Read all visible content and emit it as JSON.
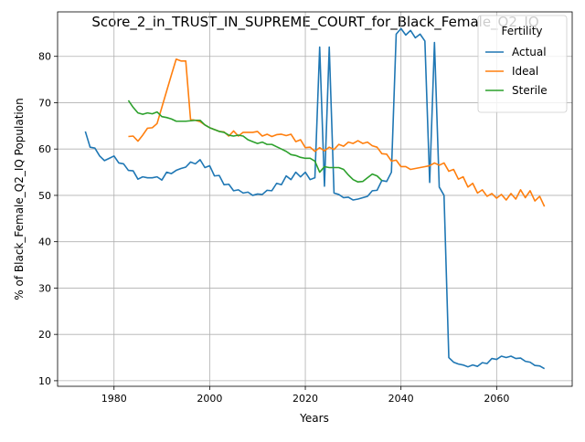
{
  "chart_data": {
    "type": "line",
    "title": "Score_2_in_TRUST_IN_SUPREME_COURT_for_Black_Female_Q2_IQ",
    "xlabel": "Years",
    "ylabel": "% of Black_Female_Q2_IQ Population",
    "xlim": [
      1968.2,
      2075.8
    ],
    "ylim": [
      8.8,
      89.6
    ],
    "xticks": [
      1980,
      2000,
      2020,
      2040,
      2060
    ],
    "yticks": [
      10,
      20,
      30,
      40,
      50,
      60,
      70,
      80
    ],
    "grid": true,
    "legend": {
      "title": "Fertility",
      "placement": "top-right"
    },
    "series": [
      {
        "name": "Actual",
        "color": "#1f77b4",
        "points": [
          [
            1974,
            63.8
          ],
          [
            1975,
            60.4
          ],
          [
            1976,
            60.2
          ],
          [
            1977,
            58.5
          ],
          [
            1978,
            57.5
          ],
          [
            1979,
            58.0
          ],
          [
            1980,
            58.5
          ],
          [
            1981,
            57.0
          ],
          [
            1982,
            56.8
          ],
          [
            1983,
            55.4
          ],
          [
            1984,
            55.3
          ],
          [
            1985,
            53.5
          ],
          [
            1986,
            54.0
          ],
          [
            1987,
            53.8
          ],
          [
            1988,
            53.8
          ],
          [
            1989,
            54.0
          ],
          [
            1990,
            53.3
          ],
          [
            1991,
            55.0
          ],
          [
            1992,
            54.7
          ],
          [
            1993,
            55.4
          ],
          [
            1994,
            55.8
          ],
          [
            1995,
            56.1
          ],
          [
            1996,
            57.2
          ],
          [
            1997,
            56.8
          ],
          [
            1998,
            57.7
          ],
          [
            1999,
            56.0
          ],
          [
            2000,
            56.4
          ],
          [
            2001,
            54.2
          ],
          [
            2002,
            54.3
          ],
          [
            2003,
            52.3
          ],
          [
            2004,
            52.4
          ],
          [
            2005,
            51.0
          ],
          [
            2006,
            51.2
          ],
          [
            2007,
            50.5
          ],
          [
            2008,
            50.7
          ],
          [
            2009,
            50.0
          ],
          [
            2010,
            50.3
          ],
          [
            2011,
            50.2
          ],
          [
            2012,
            51.1
          ],
          [
            2013,
            51.0
          ],
          [
            2014,
            52.6
          ],
          [
            2015,
            52.3
          ],
          [
            2016,
            54.2
          ],
          [
            2017,
            53.4
          ],
          [
            2018,
            55.0
          ],
          [
            2019,
            54.0
          ],
          [
            2020,
            55.0
          ],
          [
            2021,
            53.4
          ],
          [
            2022,
            53.8
          ],
          [
            2023,
            82.0
          ],
          [
            2024,
            52.0
          ],
          [
            2025,
            82.0
          ],
          [
            2026,
            50.5
          ],
          [
            2027,
            50.2
          ],
          [
            2028,
            49.5
          ],
          [
            2029,
            49.6
          ],
          [
            2030,
            49.0
          ],
          [
            2031,
            49.2
          ],
          [
            2032,
            49.5
          ],
          [
            2033,
            49.8
          ],
          [
            2034,
            51.0
          ],
          [
            2035,
            51.1
          ],
          [
            2036,
            53.2
          ],
          [
            2037,
            53.0
          ],
          [
            2038,
            55.0
          ],
          [
            2039,
            84.8
          ],
          [
            2040,
            86.0
          ],
          [
            2041,
            84.6
          ],
          [
            2042,
            85.6
          ],
          [
            2043,
            84.0
          ],
          [
            2044,
            84.8
          ],
          [
            2045,
            83.3
          ],
          [
            2046,
            52.8
          ],
          [
            2047,
            83.0
          ],
          [
            2048,
            51.8
          ],
          [
            2049,
            50.0
          ],
          [
            2050,
            15.0
          ],
          [
            2051,
            14.0
          ],
          [
            2052,
            13.6
          ],
          [
            2053,
            13.4
          ],
          [
            2054,
            13.0
          ],
          [
            2055,
            13.4
          ],
          [
            2056,
            13.1
          ],
          [
            2057,
            13.9
          ],
          [
            2058,
            13.7
          ],
          [
            2059,
            14.8
          ],
          [
            2060,
            14.6
          ],
          [
            2061,
            15.3
          ],
          [
            2062,
            15.0
          ],
          [
            2063,
            15.3
          ],
          [
            2064,
            14.8
          ],
          [
            2065,
            14.9
          ],
          [
            2066,
            14.2
          ],
          [
            2067,
            14.0
          ],
          [
            2068,
            13.3
          ],
          [
            2069,
            13.2
          ],
          [
            2070,
            12.6
          ]
        ]
      },
      {
        "name": "Ideal",
        "color": "#ff7f0e",
        "points": [
          [
            1983,
            62.7
          ],
          [
            1984,
            62.8
          ],
          [
            1985,
            61.7
          ],
          [
            1986,
            63.0
          ],
          [
            1987,
            64.5
          ],
          [
            1988,
            64.6
          ],
          [
            1989,
            65.5
          ],
          [
            1990,
            69.0
          ],
          [
            1991,
            72.5
          ],
          [
            1992,
            76.0
          ],
          [
            1993,
            79.4
          ],
          [
            1994,
            79.0
          ],
          [
            1995,
            79.0
          ],
          [
            1996,
            66.4
          ],
          [
            1997,
            66.2
          ],
          [
            1998,
            65.9
          ],
          [
            1999,
            65.2
          ],
          [
            2000,
            64.6
          ],
          [
            2001,
            64.2
          ],
          [
            2002,
            63.8
          ],
          [
            2003,
            63.7
          ],
          [
            2004,
            62.8
          ],
          [
            2005,
            63.9
          ],
          [
            2006,
            62.8
          ],
          [
            2007,
            63.6
          ],
          [
            2008,
            63.6
          ],
          [
            2009,
            63.6
          ],
          [
            2010,
            63.8
          ],
          [
            2011,
            62.8
          ],
          [
            2012,
            63.2
          ],
          [
            2013,
            62.7
          ],
          [
            2014,
            63.1
          ],
          [
            2015,
            63.2
          ],
          [
            2016,
            62.9
          ],
          [
            2017,
            63.2
          ],
          [
            2018,
            61.6
          ],
          [
            2019,
            62.0
          ],
          [
            2020,
            60.3
          ],
          [
            2021,
            60.4
          ],
          [
            2022,
            59.5
          ],
          [
            2023,
            60.3
          ],
          [
            2024,
            59.6
          ],
          [
            2025,
            60.4
          ],
          [
            2026,
            59.9
          ],
          [
            2027,
            61.0
          ],
          [
            2028,
            60.6
          ],
          [
            2029,
            61.5
          ],
          [
            2030,
            61.2
          ],
          [
            2031,
            61.8
          ],
          [
            2032,
            61.2
          ],
          [
            2033,
            61.5
          ],
          [
            2034,
            60.7
          ],
          [
            2035,
            60.4
          ],
          [
            2036,
            59.0
          ],
          [
            2037,
            58.9
          ],
          [
            2038,
            57.4
          ],
          [
            2039,
            57.6
          ],
          [
            2040,
            56.2
          ],
          [
            2041,
            56.2
          ],
          [
            2042,
            55.6
          ],
          [
            2043,
            55.8
          ],
          [
            2044,
            56.0
          ],
          [
            2045,
            56.2
          ],
          [
            2046,
            56.4
          ],
          [
            2047,
            57.0
          ],
          [
            2048,
            56.5
          ],
          [
            2049,
            57.0
          ],
          [
            2050,
            55.2
          ],
          [
            2051,
            55.6
          ],
          [
            2052,
            53.5
          ],
          [
            2053,
            54.0
          ],
          [
            2054,
            51.8
          ],
          [
            2055,
            52.6
          ],
          [
            2056,
            50.5
          ],
          [
            2057,
            51.2
          ],
          [
            2058,
            49.8
          ],
          [
            2059,
            50.4
          ],
          [
            2060,
            49.4
          ],
          [
            2061,
            50.2
          ],
          [
            2062,
            49.0
          ],
          [
            2063,
            50.4
          ],
          [
            2064,
            49.2
          ],
          [
            2065,
            51.2
          ],
          [
            2066,
            49.5
          ],
          [
            2067,
            51.0
          ],
          [
            2068,
            48.8
          ],
          [
            2069,
            49.8
          ],
          [
            2070,
            47.6
          ]
        ]
      },
      {
        "name": "Sterile",
        "color": "#2ca02c",
        "points": [
          [
            1983,
            70.5
          ],
          [
            1984,
            69.0
          ],
          [
            1985,
            67.8
          ],
          [
            1986,
            67.5
          ],
          [
            1987,
            67.8
          ],
          [
            1988,
            67.6
          ],
          [
            1989,
            68.0
          ],
          [
            1990,
            67.0
          ],
          [
            1991,
            66.8
          ],
          [
            1992,
            66.5
          ],
          [
            1993,
            66.0
          ],
          [
            1994,
            66.0
          ],
          [
            1995,
            66.0
          ],
          [
            1996,
            66.1
          ],
          [
            1997,
            66.2
          ],
          [
            1998,
            66.2
          ],
          [
            1999,
            65.2
          ],
          [
            2000,
            64.6
          ],
          [
            2001,
            64.2
          ],
          [
            2002,
            63.8
          ],
          [
            2003,
            63.6
          ],
          [
            2004,
            63.0
          ],
          [
            2005,
            62.8
          ],
          [
            2006,
            63.0
          ],
          [
            2007,
            62.8
          ],
          [
            2008,
            62.0
          ],
          [
            2009,
            61.6
          ],
          [
            2010,
            61.2
          ],
          [
            2011,
            61.5
          ],
          [
            2012,
            61.0
          ],
          [
            2013,
            61.0
          ],
          [
            2014,
            60.5
          ],
          [
            2015,
            60.0
          ],
          [
            2016,
            59.5
          ],
          [
            2017,
            58.8
          ],
          [
            2018,
            58.6
          ],
          [
            2019,
            58.2
          ],
          [
            2020,
            58.0
          ],
          [
            2021,
            58.0
          ],
          [
            2022,
            57.4
          ],
          [
            2023,
            55.0
          ],
          [
            2024,
            56.2
          ],
          [
            2025,
            56.0
          ],
          [
            2026,
            56.0
          ],
          [
            2027,
            56.0
          ],
          [
            2028,
            55.6
          ],
          [
            2029,
            54.4
          ],
          [
            2030,
            53.4
          ],
          [
            2031,
            52.9
          ],
          [
            2032,
            53.0
          ],
          [
            2033,
            53.8
          ],
          [
            2034,
            54.6
          ],
          [
            2035,
            54.2
          ],
          [
            2036,
            53.2
          ]
        ]
      }
    ]
  }
}
